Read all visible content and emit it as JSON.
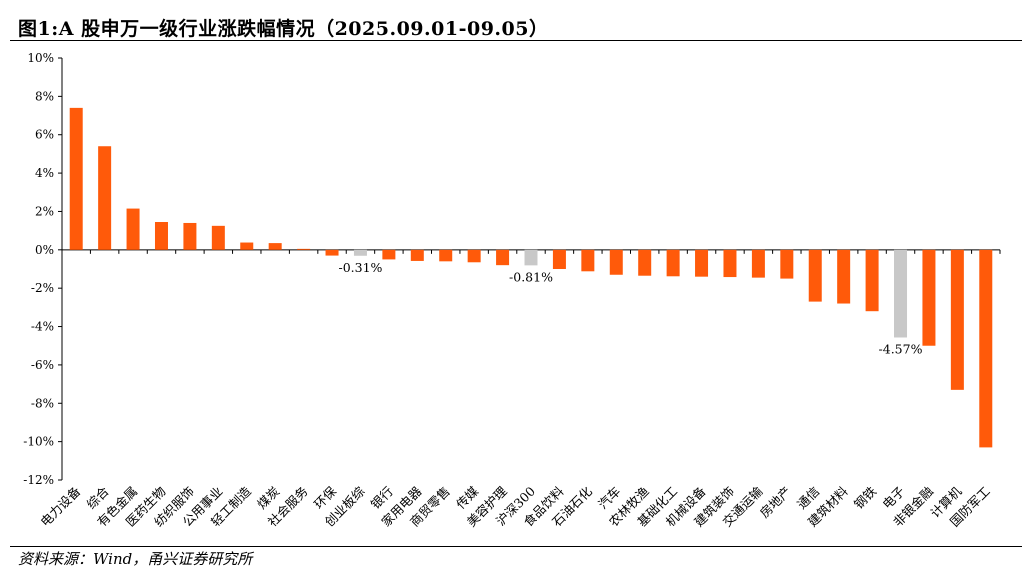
{
  "header": {
    "title": "图1:A 股申万一级行业涨跌幅情况（2025.09.01-09.05）"
  },
  "footer": {
    "source": "资料来源：Wind，甬兴证券研究所"
  },
  "colors": {
    "bar": "#FF5A0A",
    "highlight": "#C8C8C8"
  },
  "chart_data": {
    "type": "bar",
    "title": "图1:A 股申万一级行业涨跌幅情况（2025.09.01-09.05）",
    "xlabel": "",
    "ylabel": "",
    "ylim": [
      -12,
      10
    ],
    "yticks": [
      10,
      8,
      6,
      4,
      2,
      0,
      -2,
      -4,
      -6,
      -8,
      -10,
      -12
    ],
    "ytick_labels": [
      "10%",
      "8%",
      "6%",
      "4%",
      "2%",
      "0%",
      "-2%",
      "-4%",
      "-6%",
      "-8%",
      "-10%",
      "-12%"
    ],
    "grid": false,
    "legend": "none",
    "categories": [
      "电力设备",
      "综合",
      "有色金属",
      "医药生物",
      "纺织服饰",
      "公用事业",
      "轻工制造",
      "煤炭",
      "社会服务",
      "环保",
      "创业板综",
      "银行",
      "家用电器",
      "商贸零售",
      "传媒",
      "美容护理",
      "沪深300",
      "食品饮料",
      "石油石化",
      "汽车",
      "农林牧渔",
      "基础化工",
      "机械设备",
      "建筑装饰",
      "交通运输",
      "房地产",
      "通信",
      "建筑材料",
      "钢铁",
      "电子",
      "非银金融",
      "计算机",
      "国防军工"
    ],
    "values": [
      7.4,
      5.4,
      2.15,
      1.45,
      1.4,
      1.25,
      0.38,
      0.35,
      0.05,
      -0.3,
      -0.31,
      -0.5,
      -0.58,
      -0.6,
      -0.65,
      -0.8,
      -0.81,
      -1.0,
      -1.12,
      -1.3,
      -1.35,
      -1.38,
      -1.4,
      -1.42,
      -1.45,
      -1.5,
      -2.7,
      -2.8,
      -3.2,
      -4.57,
      -5.0,
      -7.3,
      -10.3
    ],
    "highlighted": [
      "创业板综",
      "沪深300",
      "电子"
    ],
    "annotations": [
      {
        "category": "创业板综",
        "text": "-0.31%"
      },
      {
        "category": "沪深300",
        "text": "-0.81%"
      },
      {
        "category": "电子",
        "text": "-4.57%"
      }
    ]
  }
}
